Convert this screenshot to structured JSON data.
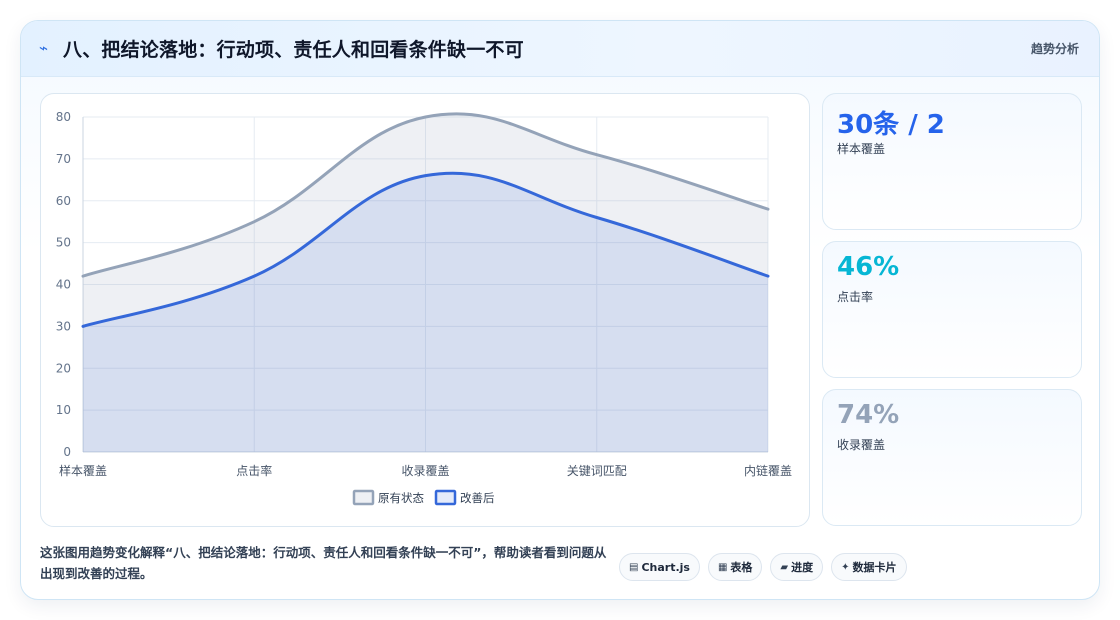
{
  "header": {
    "icon": "lightning-icon",
    "title": "八、把结论落地：行动项、责任人和回看条件缺一不可",
    "tag": "趋势分析"
  },
  "chart_data": {
    "type": "area",
    "categories": [
      "样本覆盖",
      "点击率",
      "收录覆盖",
      "关键词匹配",
      "内链覆盖"
    ],
    "series": [
      {
        "name": "原有状态",
        "values": [
          42,
          55,
          80,
          71,
          58
        ],
        "color": "#94a3b8"
      },
      {
        "name": "改善后",
        "values": [
          30,
          42,
          66,
          56,
          42
        ],
        "color": "#3568d9"
      }
    ],
    "ylim": [
      0,
      80
    ],
    "yticks": [
      0,
      10,
      20,
      30,
      40,
      50,
      60,
      70,
      80
    ],
    "grid": true,
    "legend": "bottom"
  },
  "stats": [
    {
      "value": "30条 / 2",
      "label": "样本覆盖",
      "color": "#2563eb"
    },
    {
      "value": "46%",
      "label": "点击率",
      "color": "#06b6d4"
    },
    {
      "value": "74%",
      "label": "收录覆盖",
      "color": "#94a3b8"
    }
  ],
  "footer": {
    "text": "这张图用趋势变化解释“八、把结论落地：行动项、责任人和回看条件缺一不可”，帮助读者看到问题从出现到改善的过程。"
  },
  "badges": [
    {
      "icon": "▤",
      "label": "Chart.js"
    },
    {
      "icon": "▦",
      "label": "表格"
    },
    {
      "icon": "▰",
      "label": "进度"
    },
    {
      "icon": "✦",
      "label": "数据卡片"
    }
  ]
}
